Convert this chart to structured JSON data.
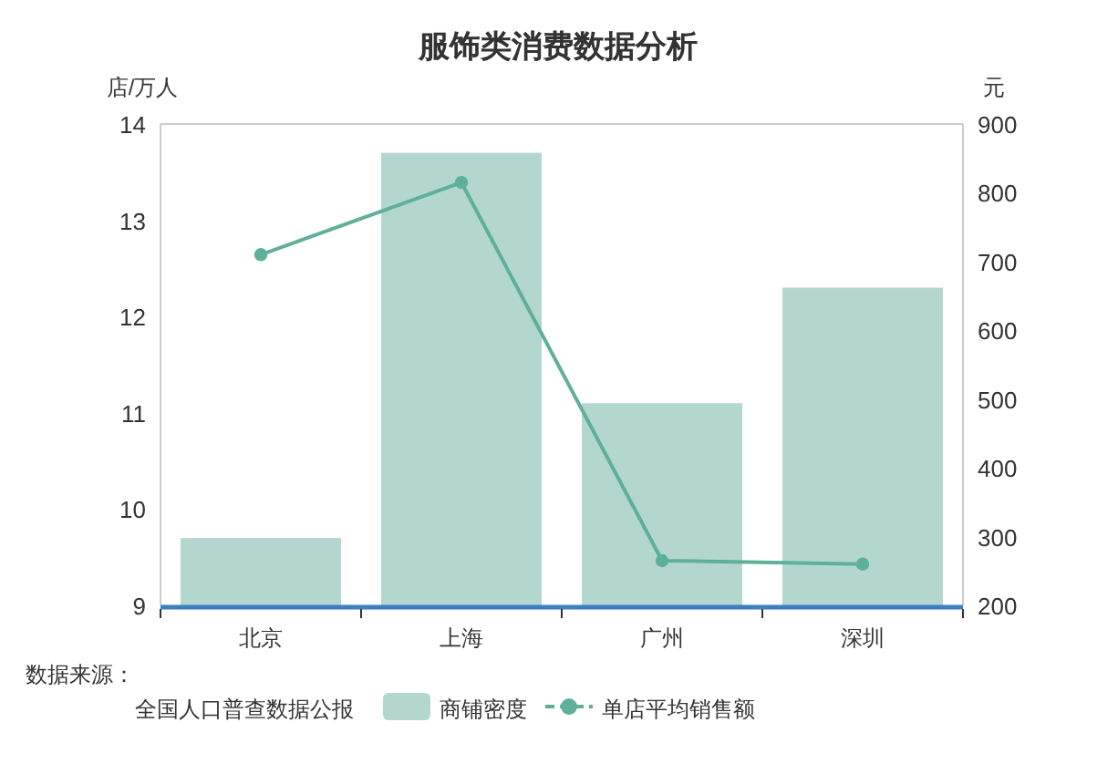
{
  "chart_data": {
    "type": "bar",
    "title": "服饰类消费数据分析",
    "ylabel": "店/万人",
    "y2label": "元",
    "categories": [
      "北京",
      "上海",
      "广州",
      "深圳"
    ],
    "series": [
      {
        "name": "商铺密度",
        "color": "#b3d7cf",
        "values": [
          9.7,
          13.7,
          11.1,
          12.3
        ]
      },
      {
        "name": "单店平均销售额",
        "type": "line",
        "axis": "y2",
        "color": "#5fb09a",
        "marker": "circle",
        "values": [
          710,
          815,
          265,
          260
        ]
      }
    ],
    "ylim": [
      9,
      14
    ],
    "yticks": [
      9,
      10,
      11,
      12,
      13,
      14
    ],
    "y2lim": [
      200,
      900
    ],
    "y2ticks": [
      200,
      300,
      400,
      500,
      600,
      700,
      800,
      900
    ],
    "legend": "bottom",
    "annotations": [
      "数据来源：",
      "全国人口普查数据公报"
    ]
  }
}
